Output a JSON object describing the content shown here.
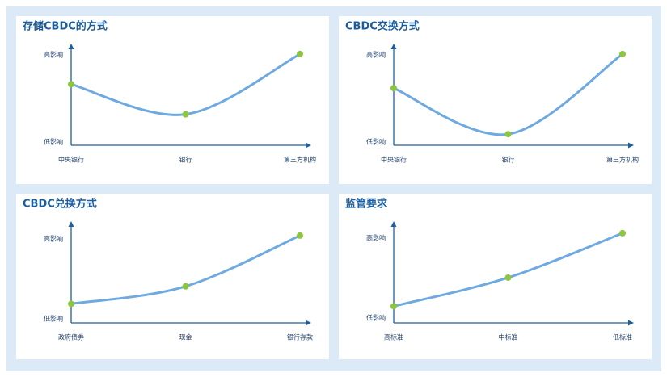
{
  "chart_data": [
    {
      "type": "line",
      "title": "存储CBDC的方式",
      "categories": [
        "中央银行",
        "银行",
        "第三方机构"
      ],
      "values": [
        7.7,
        3.9,
        11.5
      ],
      "ylim": [
        0,
        12
      ],
      "yticks": [
        {
          "value": 0.4,
          "label": "低影响"
        },
        {
          "value": 11.4,
          "label": "高影响"
        }
      ],
      "color": "#6ea9e0",
      "marker_color": "#8cc63f"
    },
    {
      "type": "line",
      "title": "CBDC交换方式",
      "categories": [
        "中央银行",
        "银行",
        "第三方机构"
      ],
      "values": [
        7.2,
        1.4,
        11.5
      ],
      "ylim": [
        0,
        12
      ],
      "yticks": [
        {
          "value": 0.4,
          "label": "低影响"
        },
        {
          "value": 11.4,
          "label": "高影响"
        }
      ],
      "color": "#6ea9e0",
      "marker_color": "#8cc63f"
    },
    {
      "type": "line",
      "title": "CBDC兑换方式",
      "categories": [
        "政府债券",
        "现金",
        "银行存款"
      ],
      "values": [
        2.4,
        4.6,
        11.0
      ],
      "ylim": [
        0,
        12
      ],
      "yticks": [
        {
          "value": 0.5,
          "label": "低影响"
        },
        {
          "value": 10.6,
          "label": "高影响"
        }
      ],
      "color": "#6ea9e0",
      "marker_color": "#8cc63f"
    },
    {
      "type": "line",
      "title": "监管要求",
      "categories": [
        "高标准",
        "中标准",
        "低标准"
      ],
      "values": [
        2.1,
        5.7,
        11.3
      ],
      "ylim": [
        0,
        12
      ],
      "yticks": [
        {
          "value": 0.6,
          "label": "低影响"
        },
        {
          "value": 10.7,
          "label": "高影响"
        }
      ],
      "color": "#6ea9e0",
      "marker_color": "#8cc63f"
    }
  ]
}
